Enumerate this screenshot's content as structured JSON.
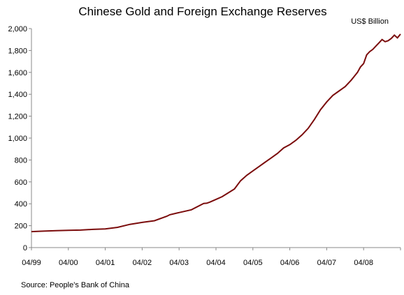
{
  "chart_data": {
    "type": "line",
    "title": "Chinese Gold and Foreign Exchange Reserves",
    "unit_label": "US$ Billion",
    "source": "Source: People's Bank of China",
    "xlabel": "",
    "ylabel": "",
    "ylim": [
      0,
      2000
    ],
    "y_ticks": [
      0,
      200,
      400,
      600,
      800,
      1000,
      1200,
      1400,
      1600,
      1800,
      2000
    ],
    "y_tick_labels": [
      "0",
      "200",
      "400",
      "600",
      "800",
      "1,000",
      "1,200",
      "1,400",
      "1,600",
      "1,800",
      "2,000"
    ],
    "x_tick_labels": [
      "04/99",
      "04/00",
      "04/01",
      "04/02",
      "04/03",
      "04/04",
      "04/05",
      "04/06",
      "04/07",
      "04/08"
    ],
    "x_range": [
      "1999-04",
      "2009-04"
    ],
    "grid": false,
    "line_color": "#7b0c0c",
    "series": [
      {
        "name": "",
        "x": [
          "1999-04",
          "1999-08",
          "1999-12",
          "2000-04",
          "2000-08",
          "2000-12",
          "2001-04",
          "2001-08",
          "2001-12",
          "2002-04",
          "2002-08",
          "2002-12",
          "2003-01",
          "2003-04",
          "2003-08",
          "2003-12",
          "2004-01",
          "2004-02",
          "2004-04",
          "2004-06",
          "2004-08",
          "2004-10",
          "2004-12",
          "2005-02",
          "2005-04",
          "2005-06",
          "2005-08",
          "2005-10",
          "2005-12",
          "2006-02",
          "2006-04",
          "2006-06",
          "2006-08",
          "2006-10",
          "2006-12",
          "2007-02",
          "2007-04",
          "2007-06",
          "2007-08",
          "2007-10",
          "2007-12",
          "2008-02",
          "2008-03",
          "2008-04",
          "2008-05",
          "2008-06",
          "2008-07",
          "2008-08",
          "2008-09",
          "2008-10",
          "2008-11",
          "2008-12",
          "2009-01",
          "2009-02",
          "2009-03",
          "2009-04"
        ],
        "y": [
          146,
          150,
          155,
          158,
          160,
          166,
          170,
          185,
          212,
          230,
          245,
          286,
          300,
          320,
          345,
          403,
          405,
          415,
          440,
          465,
          500,
          535,
          610,
          660,
          700,
          740,
          780,
          820,
          860,
          910,
          940,
          980,
          1030,
          1090,
          1170,
          1260,
          1330,
          1390,
          1430,
          1470,
          1530,
          1600,
          1650,
          1680,
          1760,
          1790,
          1810,
          1840,
          1870,
          1900,
          1880,
          1890,
          1910,
          1940,
          1915,
          1950
        ]
      }
    ]
  }
}
